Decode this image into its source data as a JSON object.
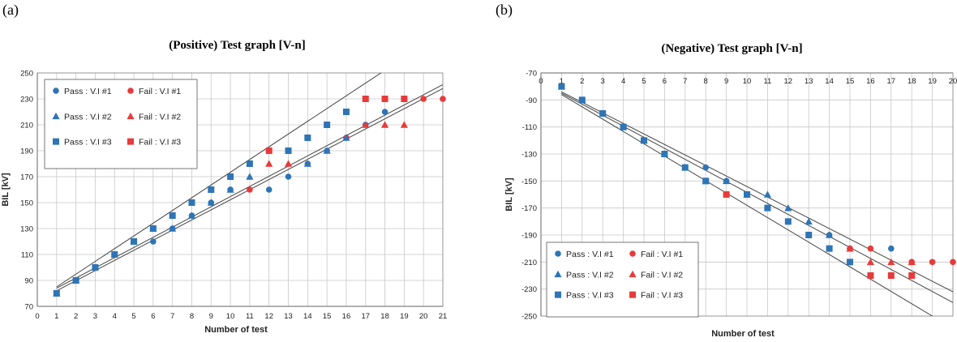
{
  "panels": {
    "a_label": "(a)",
    "b_label": "(b)"
  },
  "colors": {
    "pass": "#2e75b6",
    "fail": "#e83a3a",
    "grid": "#c8c8c8",
    "fit": "#444444"
  },
  "chart_data": [
    {
      "type": "scatter",
      "title": "(Positive) Test graph [V-n]",
      "xlabel": "Number of test",
      "ylabel": "BIL [kV]",
      "xlim": [
        0,
        21
      ],
      "ylim": [
        70,
        250
      ],
      "xticks": [
        "0",
        "1",
        "2",
        "3",
        "4",
        "5",
        "6",
        "7",
        "8",
        "9",
        "10",
        "11",
        "12",
        "13",
        "14",
        "15",
        "16",
        "17",
        "18",
        "19",
        "20",
        "21"
      ],
      "yticks": [
        "70",
        "90",
        "110",
        "130",
        "150",
        "170",
        "190",
        "210",
        "230",
        "250"
      ],
      "x_axis_at_bottom": true,
      "grid": true,
      "legend": {
        "placement": "top-left",
        "entries": [
          "Pass : V.I #1",
          "Fail : V.I #1",
          "Pass : V.I #2",
          "Fail : V.I #2",
          "Pass : V.I #3",
          "Fail : V.I #3"
        ]
      },
      "series": [
        {
          "name": "Pass : V.I #1",
          "marker": "circle",
          "status": "pass",
          "points": [
            [
              1,
              80
            ],
            [
              2,
              90
            ],
            [
              3,
              100
            ],
            [
              4,
              110
            ],
            [
              5,
              120
            ],
            [
              6,
              120
            ],
            [
              7,
              130
            ],
            [
              8,
              140
            ],
            [
              9,
              150
            ],
            [
              10,
              160
            ],
            [
              12,
              160
            ],
            [
              13,
              170
            ],
            [
              14,
              180
            ],
            [
              15,
              190
            ],
            [
              16,
              200
            ],
            [
              17,
              210
            ],
            [
              18,
              220
            ]
          ]
        },
        {
          "name": "Fail : V.I #1",
          "marker": "circle",
          "status": "fail",
          "points": [
            [
              11,
              160
            ],
            [
              16,
              200
            ],
            [
              20,
              230
            ],
            [
              21,
              230
            ]
          ]
        },
        {
          "name": "Pass : V.I #2",
          "marker": "triangle",
          "status": "pass",
          "points": [
            [
              1,
              80
            ],
            [
              2,
              90
            ],
            [
              3,
              100
            ],
            [
              4,
              110
            ],
            [
              5,
              120
            ],
            [
              6,
              130
            ],
            [
              7,
              130
            ],
            [
              8,
              140
            ],
            [
              9,
              150
            ],
            [
              10,
              160
            ],
            [
              11,
              170
            ],
            [
              14,
              180
            ],
            [
              15,
              190
            ],
            [
              16,
              200
            ]
          ]
        },
        {
          "name": "Fail : V.I #2",
          "marker": "triangle",
          "status": "fail",
          "points": [
            [
              12,
              180
            ],
            [
              13,
              180
            ],
            [
              17,
              210
            ],
            [
              18,
              210
            ],
            [
              19,
              210
            ]
          ]
        },
        {
          "name": "Pass : V.I #3",
          "marker": "square",
          "status": "pass",
          "points": [
            [
              1,
              80
            ],
            [
              2,
              90
            ],
            [
              3,
              100
            ],
            [
              4,
              110
            ],
            [
              5,
              120
            ],
            [
              6,
              130
            ],
            [
              7,
              140
            ],
            [
              8,
              150
            ],
            [
              9,
              160
            ],
            [
              10,
              170
            ],
            [
              11,
              180
            ],
            [
              13,
              190
            ],
            [
              14,
              200
            ],
            [
              15,
              210
            ],
            [
              16,
              220
            ]
          ]
        },
        {
          "name": "Fail : V.I #3",
          "marker": "square",
          "status": "fail",
          "points": [
            [
              12,
              190
            ],
            [
              17,
              230
            ],
            [
              18,
              230
            ],
            [
              19,
              230
            ]
          ]
        }
      ],
      "trendlines": [
        {
          "from": [
            1,
            85
          ],
          "to": [
            18,
            252
          ]
        },
        {
          "from": [
            1,
            84
          ],
          "to": [
            21,
            241
          ]
        },
        {
          "from": [
            1,
            82
          ],
          "to": [
            21,
            238
          ]
        }
      ]
    },
    {
      "type": "scatter",
      "title": "(Negative) Test graph [V-n]",
      "xlabel": "Number of test",
      "ylabel": "BIL [kV]",
      "xlim": [
        0,
        20
      ],
      "ylim": [
        -250,
        -70
      ],
      "xticks": [
        "0",
        "1",
        "2",
        "3",
        "4",
        "5",
        "6",
        "7",
        "8",
        "9",
        "10",
        "11",
        "12",
        "13",
        "14",
        "15",
        "16",
        "17",
        "18",
        "19",
        "20"
      ],
      "yticks": [
        "-70",
        "-90",
        "-110",
        "-130",
        "-150",
        "-170",
        "-190",
        "-210",
        "-230",
        "-250"
      ],
      "x_axis_at_bottom": false,
      "grid": true,
      "legend": {
        "placement": "bottom-left",
        "entries": [
          "Pass : V.I #1",
          "Fail : V.I #1",
          "Pass : V.I #2",
          "Fail : V.I #2",
          "Pass : V.I #3",
          "Fail : V.I #3"
        ]
      },
      "series": [
        {
          "name": "Pass : V.I #1",
          "marker": "circle",
          "status": "pass",
          "points": [
            [
              1,
              -80
            ],
            [
              2,
              -90
            ],
            [
              3,
              -100
            ],
            [
              4,
              -110
            ],
            [
              5,
              -120
            ],
            [
              6,
              -130
            ],
            [
              7,
              -140
            ],
            [
              8,
              -140
            ],
            [
              9,
              -150
            ],
            [
              10,
              -160
            ],
            [
              11,
              -170
            ],
            [
              12,
              -180
            ],
            [
              13,
              -190
            ],
            [
              14,
              -190
            ],
            [
              15,
              -200
            ],
            [
              17,
              -200
            ]
          ]
        },
        {
          "name": "Fail : V.I #1",
          "marker": "circle",
          "status": "fail",
          "points": [
            [
              15,
              -200
            ],
            [
              16,
              -200
            ],
            [
              18,
              -210
            ],
            [
              19,
              -210
            ],
            [
              20,
              -210
            ]
          ]
        },
        {
          "name": "Pass : V.I #2",
          "marker": "triangle",
          "status": "pass",
          "points": [
            [
              1,
              -80
            ],
            [
              2,
              -90
            ],
            [
              3,
              -100
            ],
            [
              4,
              -110
            ],
            [
              5,
              -120
            ],
            [
              6,
              -130
            ],
            [
              7,
              -140
            ],
            [
              8,
              -150
            ],
            [
              9,
              -150
            ],
            [
              10,
              -160
            ],
            [
              11,
              -160
            ],
            [
              12,
              -170
            ],
            [
              13,
              -180
            ],
            [
              14,
              -190
            ]
          ]
        },
        {
          "name": "Fail : V.I #2",
          "marker": "triangle",
          "status": "fail",
          "points": [
            [
              15,
              -200
            ],
            [
              16,
              -210
            ],
            [
              17,
              -210
            ],
            [
              18,
              -210
            ]
          ]
        },
        {
          "name": "Pass : V.I #3",
          "marker": "square",
          "status": "pass",
          "points": [
            [
              1,
              -80
            ],
            [
              2,
              -90
            ],
            [
              3,
              -100
            ],
            [
              4,
              -110
            ],
            [
              5,
              -120
            ],
            [
              6,
              -130
            ],
            [
              7,
              -140
            ],
            [
              8,
              -150
            ],
            [
              10,
              -160
            ],
            [
              11,
              -170
            ],
            [
              12,
              -180
            ],
            [
              13,
              -190
            ],
            [
              14,
              -200
            ],
            [
              15,
              -210
            ]
          ]
        },
        {
          "name": "Fail : V.I #3",
          "marker": "square",
          "status": "fail",
          "points": [
            [
              9,
              -160
            ],
            [
              16,
              -220
            ],
            [
              17,
              -220
            ],
            [
              18,
              -220
            ]
          ]
        }
      ],
      "trendlines": [
        {
          "from": [
            1,
            -84
          ],
          "to": [
            20,
            -232
          ]
        },
        {
          "from": [
            1,
            -85
          ],
          "to": [
            20,
            -240
          ]
        },
        {
          "from": [
            1,
            -86
          ],
          "to": [
            19,
            -250
          ]
        }
      ]
    }
  ]
}
